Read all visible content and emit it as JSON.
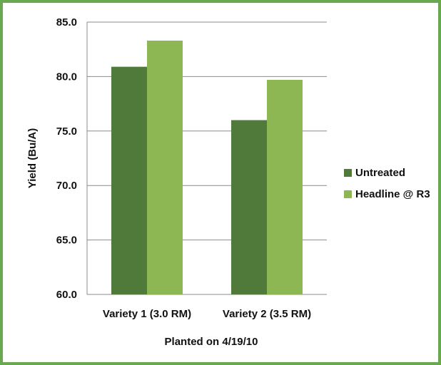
{
  "chart_data": {
    "type": "bar",
    "categories": [
      "Variety 1 (3.0 RM)",
      "Variety 2 (3.5 RM)"
    ],
    "series": [
      {
        "name": "Untreated",
        "values": [
          80.9,
          76.0
        ],
        "color": "#4f7a3a"
      },
      {
        "name": "Headline @ R3",
        "values": [
          83.3,
          79.7
        ],
        "color": "#8cb753"
      }
    ],
    "xlabel": "Planted on 4/19/10",
    "ylabel": "Yield (Bu/A)",
    "ylim": [
      60,
      85
    ],
    "yticks": [
      "60.0",
      "65.0",
      "70.0",
      "75.0",
      "80.0",
      "85.0"
    ],
    "grid": true,
    "legend_position": "right"
  },
  "colors": {
    "border": "#6aa84f",
    "grid": "#8c8c8c"
  }
}
